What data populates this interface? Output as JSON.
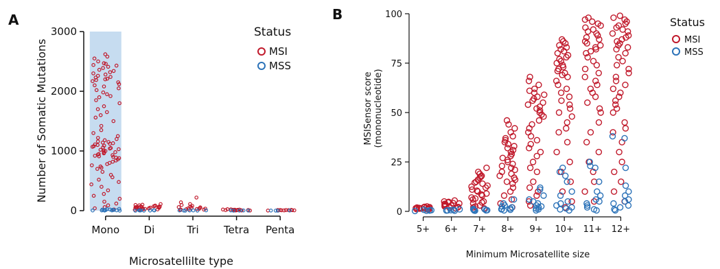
{
  "panels": {
    "a": "A",
    "b": "B"
  },
  "colors": {
    "msi": "#c0182a",
    "mss": "#2b72b8",
    "highlight": "#c6dcf0"
  },
  "chart_data": [
    {
      "type": "scatter",
      "title": "",
      "xlabel": "Microsatellilte type",
      "ylabel": "Number of Somatic Mutations",
      "categories": [
        "Mono",
        "Di",
        "Tri",
        "Tetra",
        "Penta"
      ],
      "ylim": [
        0,
        3000
      ],
      "yticks": [
        0,
        1000,
        2000,
        3000
      ],
      "highlighted_category": "Mono",
      "legend": {
        "title": "Status",
        "position": "top-right",
        "entries": [
          "MSI",
          "MSS"
        ]
      },
      "series": [
        {
          "name": "MSI",
          "points": {
            "Mono": [
              2620,
              2580,
              2550,
              2500,
              2470,
              2460,
              2440,
              2430,
              2410,
              2390,
              2360,
              2340,
              2320,
              2300,
              2280,
              2260,
              2240,
              2230,
              2210,
              2200,
              2190,
              2170,
              2150,
              2120,
              2100,
              2080,
              2050,
              2020,
              1980,
              1950,
              1920,
              1900,
              1850,
              1800,
              1750,
              1700,
              1650,
              1600,
              1560,
              1500,
              1420,
              1350,
              1300,
              1250,
              1220,
              1200,
              1180,
              1160,
              1150,
              1140,
              1130,
              1120,
              1110,
              1100,
              1090,
              1080,
              1070,
              1060,
              1050,
              1040,
              1030,
              1020,
              1010,
              1000,
              990,
              980,
              970,
              960,
              950,
              940,
              930,
              920,
              910,
              900,
              890,
              880,
              860,
              840,
              820,
              800,
              780,
              760,
              740,
              720,
              700,
              650,
              600,
              560,
              520,
              480,
              440,
              400,
              340,
              280,
              250,
              200,
              150,
              120,
              90,
              60,
              40,
              20
            ],
            "Di": [
              110,
              100,
              95,
              90,
              85,
              80,
              75,
              70,
              68,
              65,
              62,
              60,
              58,
              55,
              52,
              50,
              48,
              45,
              42,
              40,
              38,
              35,
              32,
              30,
              28,
              25,
              22,
              20,
              18,
              15
            ],
            "Tri": [
              220,
              140,
              110,
              95,
              80,
              70,
              60,
              55,
              50,
              45,
              40,
              35,
              30,
              28,
              25,
              22,
              20,
              18,
              15,
              12
            ],
            "Tetra": [
              25,
              22,
              20,
              18,
              16,
              15,
              14,
              12,
              11,
              10,
              9,
              8,
              7,
              6,
              5,
              4,
              3,
              2
            ],
            "Penta": [
              14,
              12,
              11,
              10,
              9,
              8,
              7,
              6,
              5,
              4,
              3,
              2
            ]
          }
        },
        {
          "name": "MSS",
          "points": {
            "Mono": [
              30,
              25,
              20,
              18,
              15,
              12,
              10,
              8,
              6,
              5,
              4,
              3,
              2,
              1
            ],
            "Di": [
              8,
              6,
              5,
              4,
              3,
              2,
              1,
              0
            ],
            "Tri": [
              6,
              5,
              4,
              3,
              2,
              1,
              0
            ],
            "Tetra": [
              4,
              3,
              2,
              1,
              0
            ],
            "Penta": [
              3,
              2,
              1,
              0
            ]
          }
        }
      ]
    },
    {
      "type": "scatter",
      "title": "",
      "xlabel": "Minimum Microsatellite size",
      "ylabel": "MSISensor score",
      "ylabel_sub": "(mononucleotide)",
      "categories": [
        "5+",
        "6+",
        "7+",
        "8+",
        "9+",
        "10+",
        "11+",
        "12+"
      ],
      "ylim": [
        0,
        100
      ],
      "yticks": [
        0,
        25,
        50,
        75,
        100
      ],
      "legend": {
        "title": "Status",
        "position": "top-right",
        "entries": [
          "MSI",
          "MSS"
        ]
      },
      "series": [
        {
          "name": "MSI",
          "points": {
            "5+": [
              2.5,
              2.3,
              2.1,
              2.0,
              1.9,
              1.8,
              1.7,
              1.6,
              1.5,
              1.4,
              1.3,
              1.2,
              1.1,
              1.0
            ],
            "6+": [
              5.5,
              5.0,
              4.8,
              4.5,
              4.2,
              4.0,
              3.8,
              3.5,
              3.2,
              3.0,
              2.8,
              2.5,
              2.2,
              2.0,
              1.8,
              1.5
            ],
            "7+": [
              22,
              20,
              19,
              18,
              17.5,
              17,
              16,
              15,
              14.5,
              14,
              13,
              12.5,
              12,
              11,
              10.5,
              10,
              9,
              8.5,
              8,
              7,
              6.5,
              6,
              5,
              4.5,
              4,
              3,
              2.5,
              2,
              1.5
            ],
            "8+": [
              46,
              44,
              42,
              40,
              38,
              37,
              36,
              35,
              34,
              33,
              32,
              31,
              30,
              29,
              28,
              27,
              26,
              25,
              24,
              23,
              22,
              21,
              20,
              19,
              18,
              17,
              16,
              15,
              14,
              12,
              10,
              8,
              6,
              4,
              2
            ],
            "9+": [
              68,
              66,
              64,
              62,
              61,
              60,
              59,
              58,
              57,
              56,
              55,
              54,
              53,
              52,
              51,
              50,
              49,
              48,
              46,
              44,
              42,
              40,
              38,
              36,
              34,
              32,
              30,
              28,
              25,
              22,
              20,
              15,
              12,
              10,
              8,
              5,
              3
            ],
            "10+": [
              87,
              86,
              85,
              84,
              83,
              82,
              81,
              80,
              79,
              78,
              77,
              76,
              75,
              74,
              73,
              72,
              71,
              70,
              69,
              68,
              66,
              64,
              62,
              60,
              58,
              56,
              54,
              52,
              50,
              48,
              45,
              42,
              40,
              35,
              30,
              25,
              20,
              15,
              10,
              5,
              2
            ],
            "11+": [
              98,
              97,
              96,
              95,
              94,
              93,
              92,
              91,
              90,
              89,
              88,
              87,
              86,
              85,
              84,
              83,
              82,
              81,
              80,
              78,
              76,
              74,
              72,
              70,
              68,
              66,
              64,
              62,
              60,
              58,
              55,
              52,
              50,
              45,
              40,
              35,
              30,
              25,
              20,
              15,
              10,
              5
            ],
            "12+": [
              99,
              98,
              97,
              96,
              95,
              94,
              93,
              92,
              91,
              90,
              89,
              88,
              87,
              86,
              85,
              84,
              83,
              82,
              80,
              78,
              76,
              74,
              72,
              70,
              68,
              66,
              64,
              62,
              60,
              58,
              56,
              54,
              52,
              50,
              45,
              42,
              40,
              35,
              30,
              25,
              20,
              15,
              10,
              5
            ]
          }
        },
        {
          "name": "MSS",
          "points": {
            "5+": [
              0.8,
              0.6,
              0.5,
              0.4,
              0.3,
              0.2
            ],
            "6+": [
              1.0,
              0.8,
              0.6,
              0.5,
              0.4,
              0.3
            ],
            "7+": [
              1.2,
              1.0,
              0.8,
              0.6,
              0.5,
              0.4,
              0.3
            ],
            "8+": [
              6,
              4,
              3,
              2.5,
              2,
              1.5,
              1.2,
              1,
              0.8,
              0.5
            ],
            "9+": [
              12,
              11,
              8,
              6,
              5,
              4,
              3,
              2.5,
              2,
              1.5,
              1,
              0.5
            ],
            "10+": [
              22,
              20,
              18,
              15,
              10,
              8,
              5,
              4,
              3,
              2,
              1.5,
              1,
              0.5
            ],
            "11+": [
              25,
              23,
              22,
              15,
              10,
              8,
              6,
              5,
              4,
              3,
              2,
              1,
              0.5
            ],
            "12+": [
              38,
              37,
              22,
              13,
              10,
              8,
              6,
              5,
              4,
              3,
              2,
              1,
              0.5
            ]
          }
        }
      ]
    }
  ]
}
